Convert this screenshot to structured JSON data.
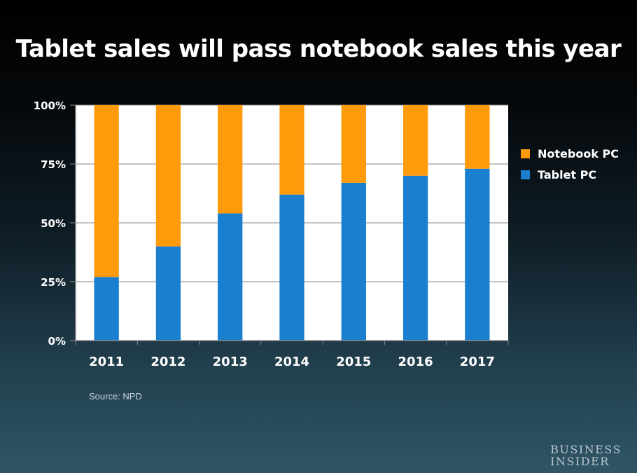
{
  "title": "Tablet sales will pass notebook sales this year",
  "source": "Source: NPD",
  "logo": {
    "line1": "BUSINESS",
    "line2": "INSIDER"
  },
  "chart_data": {
    "type": "bar",
    "stacked": true,
    "categories": [
      "2011",
      "2012",
      "2013",
      "2014",
      "2015",
      "2016",
      "2017"
    ],
    "series": [
      {
        "name": "Tablet PC",
        "color": "#1b7fd0",
        "values": [
          27,
          40,
          54,
          62,
          67,
          70,
          73
        ]
      },
      {
        "name": "Notebook PC",
        "color": "#ff9a0a",
        "values": [
          73,
          60,
          46,
          38,
          33,
          30,
          27
        ]
      }
    ],
    "yticks": [
      "0%",
      "25%",
      "50%",
      "75%",
      "100%"
    ],
    "ylim": [
      0,
      100
    ],
    "grid": true,
    "legend": {
      "position": "right",
      "entries": [
        "Notebook PC",
        "Tablet PC"
      ]
    }
  }
}
